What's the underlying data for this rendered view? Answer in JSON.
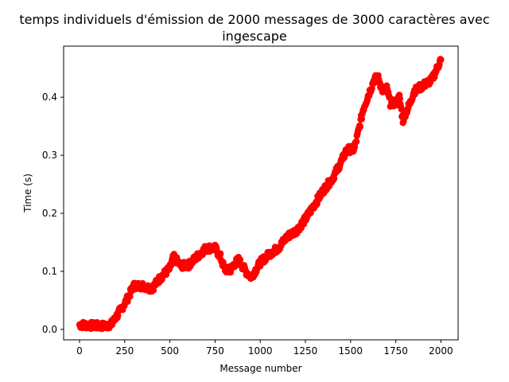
{
  "chart_data": {
    "type": "scatter",
    "title_line1": "temps individuels d'émission de 2000 messages de 3000 caractères avec",
    "title_line2": "ingescape",
    "xlabel": "Message number",
    "ylabel": "Time (s)",
    "xlim": [
      -88,
      2095
    ],
    "ylim": [
      -0.018,
      0.488
    ],
    "xticks": [
      0,
      250,
      500,
      750,
      1000,
      1250,
      1500,
      1750,
      2000
    ],
    "yticks": [
      0.0,
      0.1,
      0.2,
      0.3,
      0.4
    ],
    "ytick_labels": [
      "0.0",
      "0.1",
      "0.2",
      "0.3",
      "0.4"
    ],
    "grid": false,
    "marker_color": "#ff0000",
    "series": [
      {
        "x": [
          0,
          50,
          100,
          150,
          180,
          200,
          230,
          260,
          300,
          350,
          400,
          450,
          500,
          520,
          560,
          600,
          650,
          700,
          750,
          780,
          800,
          830,
          850,
          880,
          920,
          950,
          1000,
          1050,
          1100,
          1150,
          1200,
          1250,
          1300,
          1350,
          1400,
          1450,
          1480,
          1520,
          1550,
          1570,
          1600,
          1630,
          1650,
          1680,
          1700,
          1720,
          1750,
          1770,
          1790,
          1800,
          1830,
          1850,
          1900,
          1950,
          2000
        ],
        "y": [
          0.008,
          0.007,
          0.006,
          0.006,
          0.01,
          0.02,
          0.035,
          0.05,
          0.075,
          0.075,
          0.07,
          0.09,
          0.105,
          0.125,
          0.11,
          0.11,
          0.125,
          0.14,
          0.14,
          0.125,
          0.105,
          0.1,
          0.11,
          0.12,
          0.1,
          0.09,
          0.115,
          0.13,
          0.14,
          0.16,
          0.17,
          0.19,
          0.215,
          0.24,
          0.26,
          0.29,
          0.31,
          0.31,
          0.35,
          0.38,
          0.405,
          0.43,
          0.435,
          0.41,
          0.415,
          0.39,
          0.39,
          0.4,
          0.36,
          0.37,
          0.39,
          0.41,
          0.42,
          0.43,
          0.465
        ]
      }
    ]
  }
}
